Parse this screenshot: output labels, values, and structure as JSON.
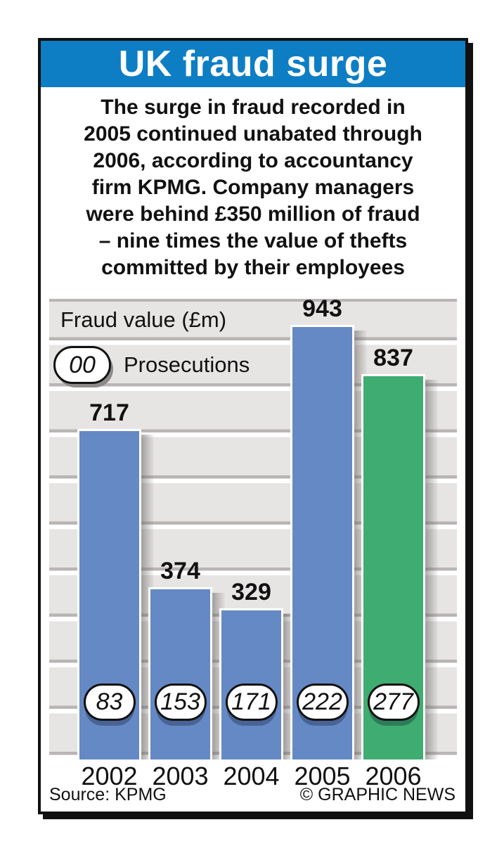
{
  "header": {
    "title": "UK fraud surge",
    "background": "#0d7ec4"
  },
  "intro": {
    "lines": [
      "The surge in fraud recorded in",
      "2005 continued unabated through",
      "2006, according to accountancy",
      "firm KPMG. Company managers",
      "were behind £350 million of fraud",
      "– nine times the value of thefts",
      "committed by their employees"
    ]
  },
  "chart_data": {
    "type": "bar",
    "title": "Fraud value (£m)",
    "legend": {
      "badge": "00",
      "label": "Prosecutions",
      "position": "top-left"
    },
    "categories": [
      "2002",
      "2003",
      "2004",
      "2005",
      "2006"
    ],
    "series": [
      {
        "name": "Fraud value (£m)",
        "values": [
          717,
          374,
          329,
          943,
          837
        ]
      },
      {
        "name": "Prosecutions",
        "values": [
          83,
          153,
          171,
          222,
          277
        ]
      }
    ],
    "ylim": [
      0,
      1000
    ],
    "gridline_interval": 100,
    "grid": true,
    "bar_colors": [
      "#6589c4",
      "#6589c4",
      "#6589c4",
      "#6589c4",
      "#3fac71"
    ]
  },
  "footer": {
    "source": "Source: KPMG",
    "credit": "© GRAPHIC NEWS"
  },
  "colors": {
    "header_blue": "#0d7ec4",
    "bar_blue": "#6589c4",
    "bar_green": "#3fac71",
    "band_gray": "#e7e4e4",
    "gridline_gray": "#b9b5b5",
    "text_black": "#111111",
    "frame_black": "#111111"
  }
}
